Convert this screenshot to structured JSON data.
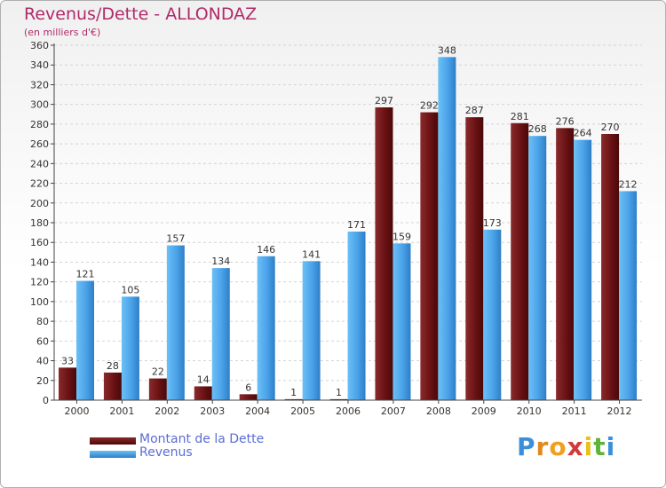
{
  "chart_data": {
    "type": "bar",
    "title": "Revenus/Dette - ALLONDAZ",
    "subtitle": "(en milliers d'€)",
    "xlabel": "",
    "ylabel": "",
    "ylim": [
      0,
      360
    ],
    "ytick_step": 20,
    "grid": true,
    "legend_position": "bottom-left",
    "categories": [
      "2000",
      "2001",
      "2002",
      "2003",
      "2004",
      "2005",
      "2006",
      "2007",
      "2008",
      "2009",
      "2010",
      "2011",
      "2012"
    ],
    "series": [
      {
        "name": "Montant de la Dette",
        "color": "#7a1a1c",
        "values": [
          33,
          28,
          22,
          14,
          6,
          1,
          1,
          297,
          292,
          287,
          281,
          276,
          270
        ]
      },
      {
        "name": "Revenus",
        "color": "#4aa5ea",
        "values": [
          121,
          105,
          157,
          134,
          146,
          141,
          171,
          159,
          348,
          173,
          268,
          264,
          212
        ]
      }
    ]
  },
  "logo": {
    "letters": [
      "P",
      "r",
      "o",
      "x",
      "i",
      "t",
      "i"
    ],
    "colors": [
      "#3b8fd9",
      "#e08a1e",
      "#f0a020",
      "#d23a3a",
      "#e8c21a",
      "#5fb33a",
      "#3b8fd9"
    ]
  }
}
